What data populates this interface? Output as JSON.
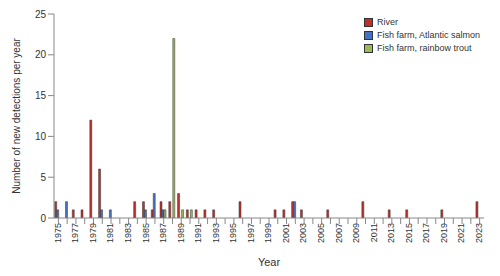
{
  "chart_data": {
    "type": "bar",
    "x_label": "Year",
    "y_label": "Number of new detections per year",
    "categories": [
      "1975",
      null,
      "1977",
      null,
      "1979",
      null,
      "1981",
      null,
      "1983",
      null,
      "1985",
      null,
      "1987",
      null,
      "1989",
      null,
      "1991",
      null,
      "1993",
      null,
      "1995",
      null,
      "1997",
      null,
      "1999",
      null,
      "2001",
      null,
      "2003",
      null,
      "2005",
      null,
      "2007",
      null,
      "2009",
      null,
      "2011",
      null,
      "2013",
      null,
      "2015",
      null,
      "2017",
      null,
      "2019",
      null,
      "2021",
      null,
      "2023"
    ],
    "series": [
      {
        "name": "River",
        "color": "#c0302b",
        "values": [
          2,
          0,
          1,
          1,
          12,
          6,
          0,
          0,
          0,
          2,
          2,
          1,
          2,
          2,
          3,
          1,
          1,
          1,
          1,
          0,
          0,
          2,
          0,
          0,
          0,
          1,
          1,
          2,
          1,
          0,
          0,
          1,
          0,
          0,
          0,
          2,
          0,
          0,
          1,
          0,
          1,
          0,
          0,
          0,
          1,
          0,
          0,
          0,
          2
        ]
      },
      {
        "name": "Fish farm, Atlantic salmon",
        "color": "#4472c4",
        "values": [
          1,
          2,
          0,
          0,
          0,
          1,
          1,
          0,
          0,
          0,
          1,
          3,
          1,
          0,
          0,
          0,
          0,
          0,
          0,
          0,
          0,
          0,
          0,
          0,
          0,
          0,
          0,
          2,
          0,
          0,
          0,
          0,
          0,
          0,
          0,
          0,
          0,
          0,
          0,
          0,
          0,
          0,
          0,
          0,
          0,
          0,
          0,
          0,
          0
        ]
      },
      {
        "name": "Fish farm, rainbow trout",
        "color": "#9bbb59",
        "values": [
          0,
          0,
          0,
          0,
          0,
          0,
          0,
          0,
          0,
          0,
          0,
          0,
          1,
          22,
          1,
          1,
          0,
          0,
          0,
          0,
          0,
          0,
          0,
          0,
          0,
          0,
          0,
          0,
          0,
          0,
          0,
          0,
          0,
          0,
          0,
          0,
          0,
          0,
          0,
          0,
          0,
          0,
          0,
          0,
          0,
          0,
          0,
          0,
          0
        ]
      }
    ],
    "ylim": [
      0,
      25
    ],
    "yticks": [
      0,
      5,
      10,
      15,
      20,
      25
    ],
    "grid": false,
    "legend": "top-right"
  }
}
